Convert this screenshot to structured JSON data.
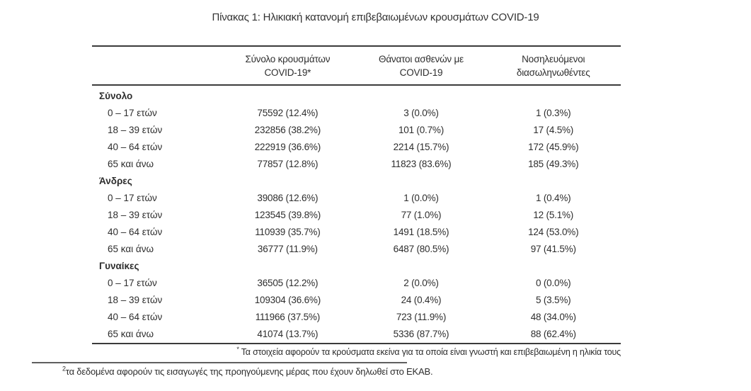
{
  "title": "Πίνακας 1: Ηλικιακή κατανομή επιβεβαιωμένων κρουσμάτων COVID-19",
  "table": {
    "columns": [
      {
        "line1": "Σύνολο κρουσμάτων",
        "line2": "COVID-19*"
      },
      {
        "line1": "Θάνατοι ασθενών με",
        "line2": "COVID-19"
      },
      {
        "line1": "Νοσηλευόμενοι",
        "line2": "διασωληνωθέντες"
      }
    ],
    "sections": [
      {
        "label": "Σύνολο",
        "rows": [
          {
            "age": "0 – 17 ετών",
            "cases": "75592 (12.4%)",
            "deaths": "3 (0.0%)",
            "intubated": "1 (0.3%)"
          },
          {
            "age": "18 – 39 ετών",
            "cases": "232856 (38.2%)",
            "deaths": "101 (0.7%)",
            "intubated": "17 (4.5%)"
          },
          {
            "age": "40 – 64 ετών",
            "cases": "222919 (36.6%)",
            "deaths": "2214 (15.7%)",
            "intubated": "172 (45.9%)"
          },
          {
            "age": "65 και άνω",
            "cases": "77857 (12.8%)",
            "deaths": "11823 (83.6%)",
            "intubated": "185 (49.3%)"
          }
        ]
      },
      {
        "label": "Άνδρες",
        "rows": [
          {
            "age": "0 – 17 ετών",
            "cases": "39086 (12.6%)",
            "deaths": "1 (0.0%)",
            "intubated": "1 (0.4%)"
          },
          {
            "age": "18 – 39 ετών",
            "cases": "123545 (39.8%)",
            "deaths": "77 (1.0%)",
            "intubated": "12 (5.1%)"
          },
          {
            "age": "40 – 64 ετών",
            "cases": "110939 (35.7%)",
            "deaths": "1491 (18.5%)",
            "intubated": "124 (53.0%)"
          },
          {
            "age": "65 και άνω",
            "cases": "36777 (11.9%)",
            "deaths": "6487 (80.5%)",
            "intubated": "97 (41.5%)"
          }
        ]
      },
      {
        "label": "Γυναίκες",
        "rows": [
          {
            "age": "0 – 17 ετών",
            "cases": "36505 (12.2%)",
            "deaths": "2 (0.0%)",
            "intubated": "0 (0.0%)"
          },
          {
            "age": "18 – 39 ετών",
            "cases": "109304 (36.6%)",
            "deaths": "24 (0.4%)",
            "intubated": "5 (3.5%)"
          },
          {
            "age": "40 – 64 ετών",
            "cases": "111966 (37.5%)",
            "deaths": "723 (11.9%)",
            "intubated": "48 (34.0%)"
          },
          {
            "age": "65 και άνω",
            "cases": "41074 (13.7%)",
            "deaths": "5336 (87.7%)",
            "intubated": "88 (62.4%)"
          }
        ]
      }
    ],
    "footnote": {
      "marker": "*",
      "text": "Τα στοιχεία αφορούν τα κρούσματα εκείνα για τα οποία είναι γνωστή και επιβεβαιωμένη η ηλικία τους"
    }
  },
  "page_footnote": {
    "marker": "2",
    "text": "τα δεδομένα αφορούν τις εισαγωγές της προηγούμενης μέρας που έχουν δηλωθεί στο ΕΚΑΒ."
  },
  "colors": {
    "text": "#2e2e2e",
    "table_rule": "#3b3b3b",
    "footnote_rule": "#5f5f5f",
    "background": "#ffffff"
  }
}
